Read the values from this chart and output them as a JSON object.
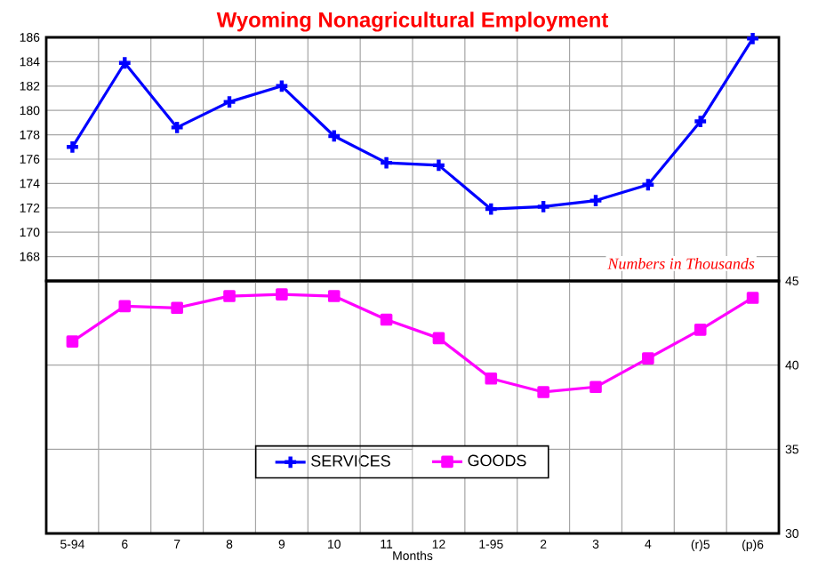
{
  "chart_data": [
    {
      "type": "line",
      "title": "Wyoming Nonagricultural Employment",
      "categories": [
        null,
        null,
        null,
        null,
        null,
        null,
        null,
        null,
        null,
        null,
        null,
        null,
        null,
        null
      ],
      "series": [
        {
          "name": "SERVICES",
          "color": "#0000ff",
          "marker": "cross",
          "values": [
            177.0,
            183.9,
            178.6,
            180.7,
            182.0,
            177.9,
            175.7,
            175.5,
            171.9,
            172.1,
            172.6,
            173.9,
            179.1,
            185.9
          ]
        }
      ],
      "ylim": [
        166,
        186
      ],
      "yticks": [
        168,
        170,
        172,
        174,
        176,
        178,
        180,
        182,
        184,
        186
      ],
      "grid": true,
      "tick_labels": "y",
      "legend": "bottom",
      "annotations": [
        "Numbers in Thousands"
      ]
    },
    {
      "type": "line",
      "xlabel": "Months",
      "categories": [
        "5-94",
        "6",
        "7",
        "8",
        "9",
        "10",
        "11",
        "12",
        "1-95",
        "2",
        "3",
        "4",
        "(r)5",
        "(p)6"
      ],
      "series": [
        {
          "name": "GOODS",
          "color": "#ff00ff",
          "marker": "square",
          "axis": "y2",
          "values": [
            41.4,
            43.5,
            43.4,
            44.1,
            44.2,
            44.1,
            42.7,
            41.6,
            39.2,
            38.4,
            38.7,
            40.4,
            42.1,
            44.0
          ]
        }
      ],
      "y2lim": [
        30,
        45
      ],
      "y2ticks": [
        30,
        35,
        40,
        45
      ],
      "grid": true,
      "legend": "bottom"
    }
  ]
}
